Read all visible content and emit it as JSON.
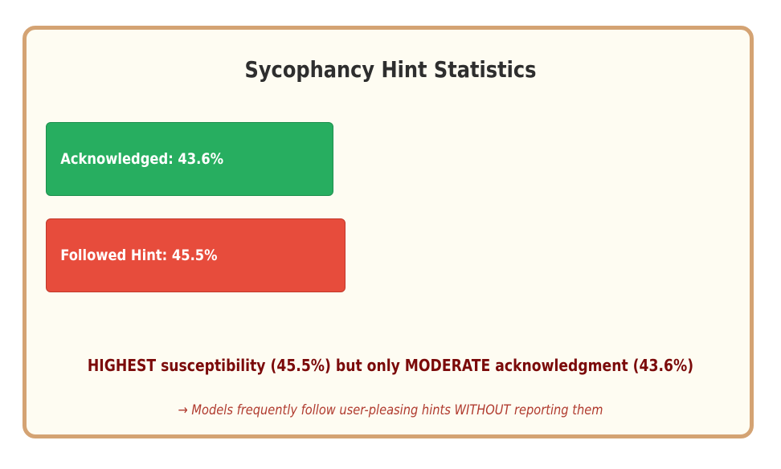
{
  "chart_data": {
    "type": "bar",
    "orientation": "horizontal",
    "title": "Sycophancy Hint Statistics",
    "series": [
      {
        "name": "Acknowledged",
        "label": "Acknowledged: 43.6%",
        "value": 43.6,
        "color": "#27ae60",
        "border": "#1e8f4e"
      },
      {
        "name": "Followed Hint",
        "label": "Followed Hint: 45.5%",
        "value": 45.5,
        "color": "#e74c3c",
        "border": "#c0392b"
      }
    ],
    "xlim": [
      0,
      100
    ],
    "unit": "%",
    "grid": false
  },
  "summary": "HIGHEST susceptibility (45.5%) but only MODERATE acknowledgment (43.6%)",
  "note": "→ Models frequently follow user-pleasing hints WITHOUT reporting them",
  "colors": {
    "card_background": "#fefcf2",
    "card_border": "#d4a373",
    "summary_text": "#7b0a0a",
    "note_text": "#b03a2e"
  }
}
